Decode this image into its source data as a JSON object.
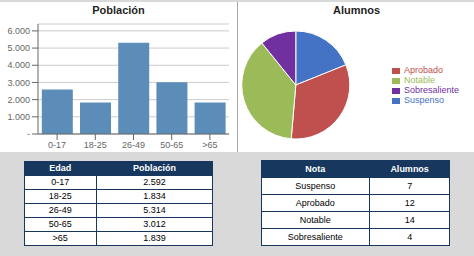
{
  "chart_data": [
    {
      "type": "bar",
      "title": "Población",
      "categories": [
        "0-17",
        "18-25",
        "26-49",
        "50-65",
        ">65"
      ],
      "values": [
        2592,
        1834,
        5314,
        3012,
        1839
      ],
      "color": "#5B8DB8",
      "ylim": [
        0,
        6400
      ],
      "yticks": [
        {
          "value": 0,
          "label": "-"
        },
        {
          "value": 1000,
          "label": "1.000"
        },
        {
          "value": 2000,
          "label": "2.000"
        },
        {
          "value": 3000,
          "label": "3.000"
        },
        {
          "value": 4000,
          "label": "4.000"
        },
        {
          "value": 5000,
          "label": "5.000"
        },
        {
          "value": 6000,
          "label": "6.000"
        }
      ],
      "grid": true
    },
    {
      "type": "pie",
      "title": "Alumnos",
      "categories": [
        "Suspenso",
        "Aprobado",
        "Notable",
        "Sobresaliente"
      ],
      "values": [
        7,
        12,
        14,
        4
      ],
      "colors": [
        "#4472C4",
        "#C0504D",
        "#9BBB59",
        "#7030A0"
      ],
      "legend": "right"
    },
    {
      "type": "table",
      "headers": [
        "Edad",
        "Población"
      ],
      "rows": [
        [
          "0-17",
          "2.592"
        ],
        [
          "18-25",
          "1.834"
        ],
        [
          "26-49",
          "5.314"
        ],
        [
          "50-65",
          "3.012"
        ],
        [
          ">65",
          "1.839"
        ]
      ],
      "color": "#17375E"
    },
    {
      "type": "table",
      "headers": [
        "Nota",
        "Alumnos"
      ],
      "rows": [
        [
          "Suspenso",
          "7"
        ],
        [
          "Aprobado",
          "12"
        ],
        [
          "Notable",
          "14"
        ],
        [
          "Sobresaliente",
          "4"
        ]
      ],
      "color": "#17375E"
    }
  ]
}
